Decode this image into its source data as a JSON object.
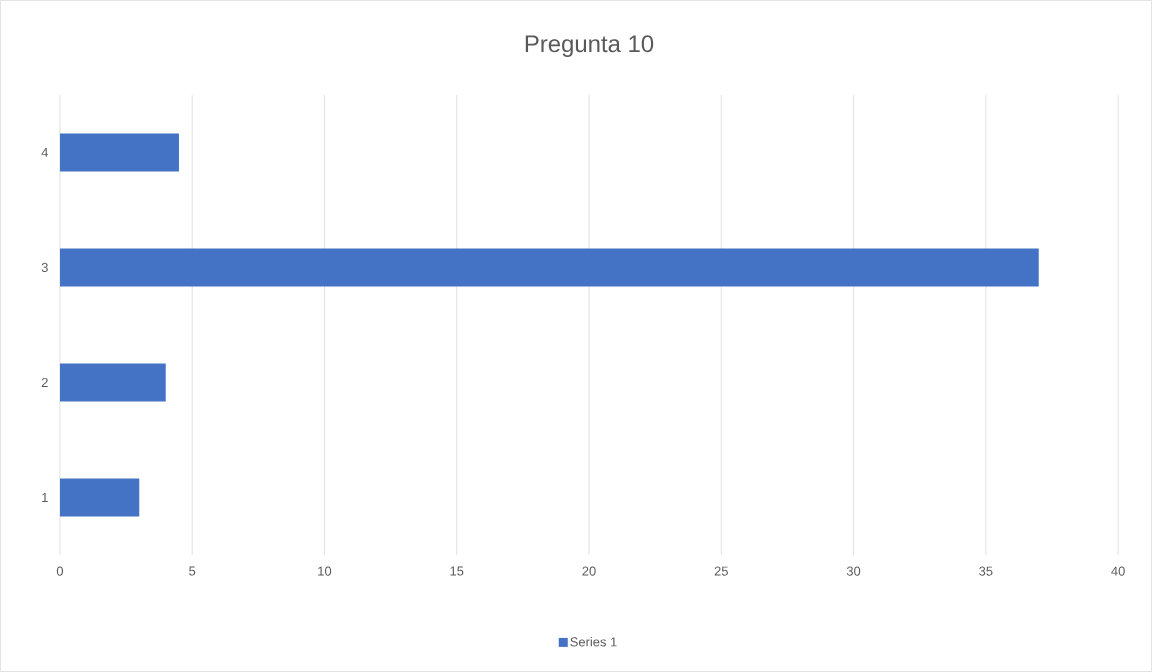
{
  "chart_data": {
    "type": "bar",
    "orientation": "horizontal",
    "title": "Pregunta 10",
    "categories": [
      "4",
      "3",
      "2",
      "1"
    ],
    "series": [
      {
        "name": "Series 1",
        "color": "#4472c4",
        "values": [
          4.5,
          37,
          4,
          3
        ]
      }
    ],
    "xlim": [
      0,
      40
    ],
    "xticks": [
      0,
      5,
      10,
      15,
      20,
      25,
      30,
      35,
      40
    ],
    "grid": "x",
    "legend": "bottom"
  }
}
